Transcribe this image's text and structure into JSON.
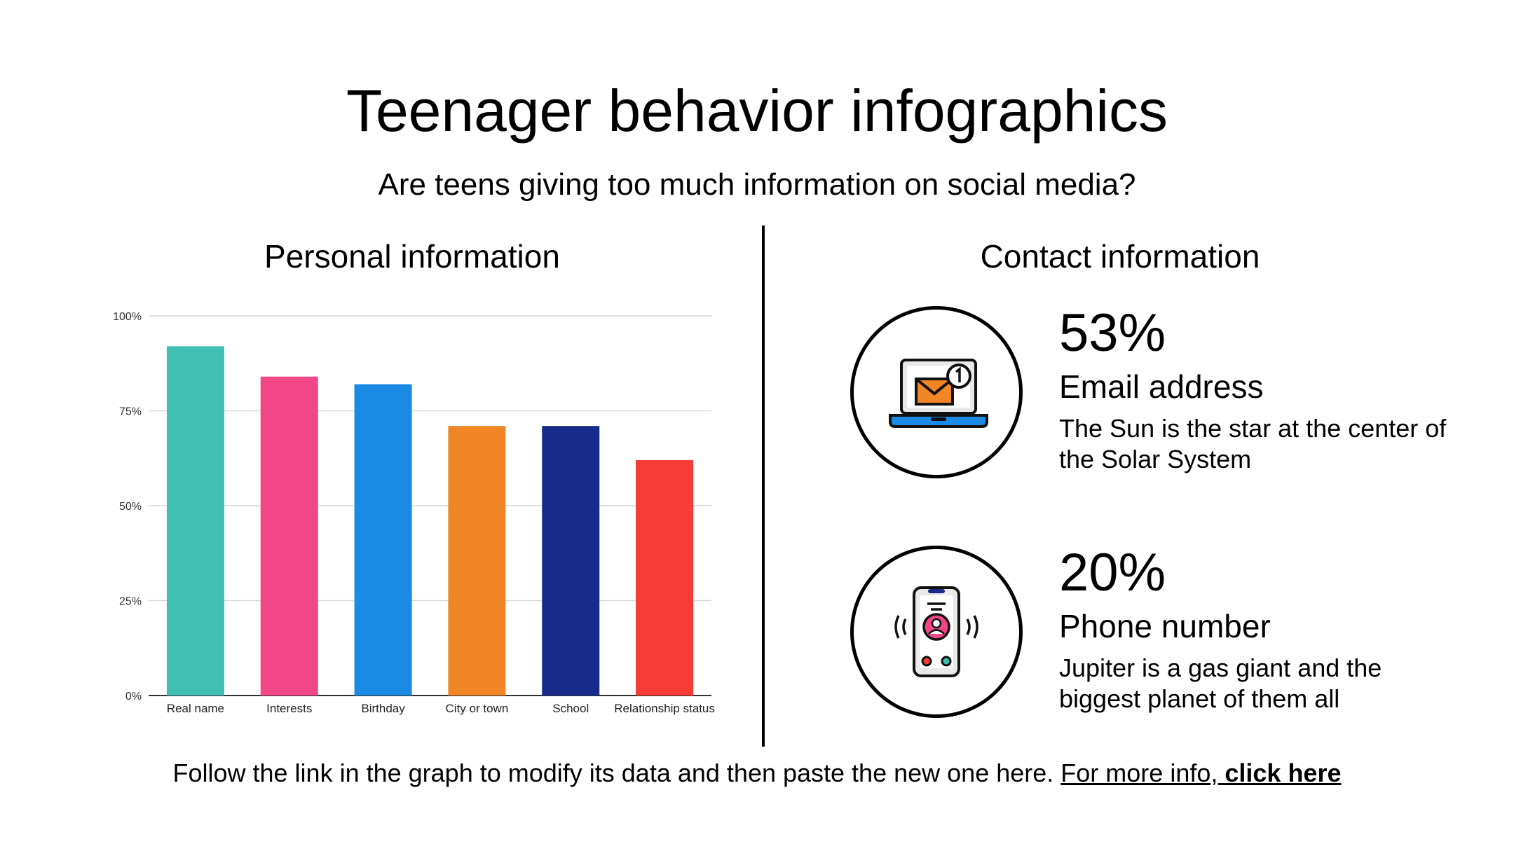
{
  "title": "Teenager behavior infographics",
  "subtitle": "Are teens giving too much information on social media?",
  "personal": {
    "heading": "Personal information"
  },
  "contact": {
    "heading": "Contact information",
    "items": [
      {
        "value": "53%",
        "label": "Email address",
        "description": "The Sun is the star at the center of the Solar System",
        "icon": "email-laptop-icon"
      },
      {
        "value": "20%",
        "label": "Phone number",
        "description": "Jupiter is a gas giant and the biggest planet of them all",
        "icon": "smartphone-call-icon"
      }
    ]
  },
  "footer": {
    "text": "Follow the link in the graph to modify its data and then paste the new one here.",
    "link_prefix": "For more info, ",
    "link_bold": "click here"
  },
  "colors": {
    "teal": "#41bfb3",
    "pink": "#f24786",
    "blue": "#1a8ae5",
    "orange": "#f08625",
    "navy": "#182a8a",
    "red": "#f73b36"
  },
  "chart_data": {
    "type": "bar",
    "categories": [
      "Real name",
      "Interests",
      "Birthday",
      "City or town",
      "School",
      "Relationship status"
    ],
    "values": [
      92,
      84,
      82,
      71,
      71,
      62
    ],
    "colors": [
      "#41bfb3",
      "#f24786",
      "#1a8ae5",
      "#f08625",
      "#182a8a",
      "#f73b36"
    ],
    "yticks": [
      "0%",
      "25%",
      "50%",
      "75%",
      "100%"
    ],
    "ylim": [
      0,
      100
    ],
    "grid": true
  }
}
